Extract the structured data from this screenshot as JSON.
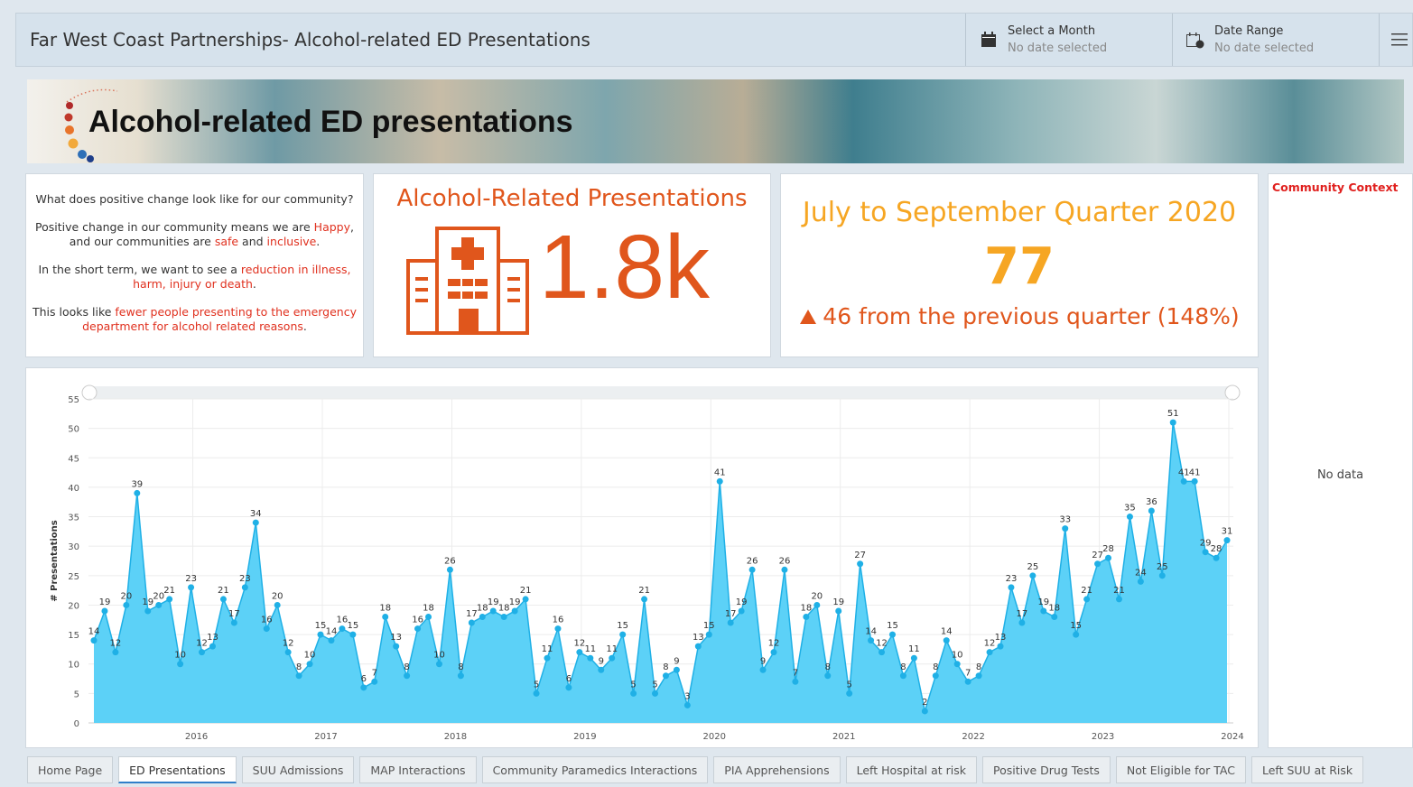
{
  "header": {
    "title": "Far West Coast Partnerships- Alcohol-related ED Presentations",
    "filters": [
      {
        "label": "Select a Month",
        "value": "No date selected"
      },
      {
        "label": "Date Range",
        "value": "No date selected"
      }
    ]
  },
  "banner": {
    "title": "Alcohol-related ED presentations"
  },
  "intro": {
    "paragraphs": [
      [
        {
          "text": "What does positive change look like for our community?"
        }
      ],
      [
        {
          "text": "Positive change in our community means we are "
        },
        {
          "text": "Happy",
          "color": "#e0301e"
        },
        {
          "text": ", and our communities are "
        },
        {
          "text": "safe",
          "color": "#e0301e"
        },
        {
          "text": " and "
        },
        {
          "text": "inclusive",
          "color": "#e0301e"
        },
        {
          "text": "."
        }
      ],
      [
        {
          "text": "In the short term, we want to see a "
        },
        {
          "text": "reduction in illness, harm, injury or death",
          "color": "#e0301e"
        },
        {
          "text": "."
        }
      ],
      [
        {
          "text": "This looks like "
        },
        {
          "text": "fewer people presenting to the emergency department for alcohol related reasons",
          "color": "#e0301e"
        },
        {
          "text": "."
        }
      ]
    ]
  },
  "kpi": {
    "title": "Alcohol-Related Presentations",
    "value": "1.8k",
    "color": "#e0561c"
  },
  "quarter": {
    "title": "July to September Quarter 2020",
    "value": 77,
    "change": "46 from the previous quarter (148%)",
    "color": "#f6a623",
    "change_color": "#e0561c"
  },
  "community": {
    "title": "Community Context",
    "message": "No data"
  },
  "chart_data": {
    "type": "area",
    "ylabel": "# Presentations",
    "categories": [
      null,
      null,
      null,
      null,
      null,
      null,
      null,
      null,
      null,
      "2016",
      null,
      null,
      null,
      null,
      null,
      null,
      null,
      null,
      null,
      null,
      null,
      "2017",
      null,
      null,
      null,
      null,
      null,
      null,
      null,
      null,
      null,
      null,
      null,
      "2018",
      null,
      null,
      null,
      null,
      null,
      null,
      null,
      null,
      null,
      null,
      null,
      "2019",
      null,
      null,
      null,
      null,
      null,
      null,
      null,
      null,
      null,
      null,
      null,
      "2020",
      null,
      null,
      null,
      null,
      null,
      null,
      null,
      null,
      null,
      null,
      null,
      "2021",
      null,
      null,
      null,
      null,
      null,
      null,
      null,
      null,
      null,
      null,
      null,
      "2022",
      null,
      null,
      null,
      null,
      null,
      null,
      null,
      null,
      null,
      null,
      null,
      "2023",
      null,
      null,
      null,
      null,
      null,
      null,
      null,
      null,
      null,
      null,
      null,
      "2024"
    ],
    "series": [
      {
        "name": "# Presentations",
        "color": "#1fb0e6",
        "fill": "#5cd1f7",
        "values": [
          14,
          19,
          12,
          20,
          39,
          19,
          20,
          21,
          10,
          23,
          12,
          13,
          21,
          17,
          23,
          34,
          16,
          20,
          12,
          8,
          10,
          15,
          14,
          16,
          15,
          6,
          7,
          18,
          13,
          8,
          16,
          18,
          10,
          26,
          8,
          17,
          18,
          19,
          18,
          19,
          21,
          5,
          11,
          16,
          6,
          12,
          11,
          9,
          11,
          15,
          5,
          21,
          5,
          8,
          9,
          3,
          13,
          15,
          41,
          17,
          19,
          26,
          9,
          12,
          26,
          7,
          18,
          20,
          8,
          19,
          5,
          27,
          14,
          12,
          15,
          8,
          11,
          2,
          8,
          14,
          10,
          7,
          8,
          12,
          13,
          23,
          17,
          25,
          19,
          18,
          33,
          15,
          21,
          27,
          28,
          21,
          35,
          24,
          36,
          25,
          51,
          41,
          41,
          29,
          28,
          31
        ]
      }
    ],
    "ylim": [
      0,
      55
    ],
    "yticks": [
      0,
      5,
      10,
      15,
      20,
      25,
      30,
      35,
      40,
      45,
      50,
      55
    ],
    "grid": true
  },
  "tabs": {
    "items": [
      "Home Page",
      "ED Presentations",
      "SUU Admissions",
      "MAP Interactions",
      "Community Paramedics Interactions",
      "PIA Apprehensions",
      "Left Hospital at risk",
      "Positive Drug Tests",
      "Not Eligible for TAC",
      "Left SUU at Risk"
    ],
    "active": 1
  }
}
